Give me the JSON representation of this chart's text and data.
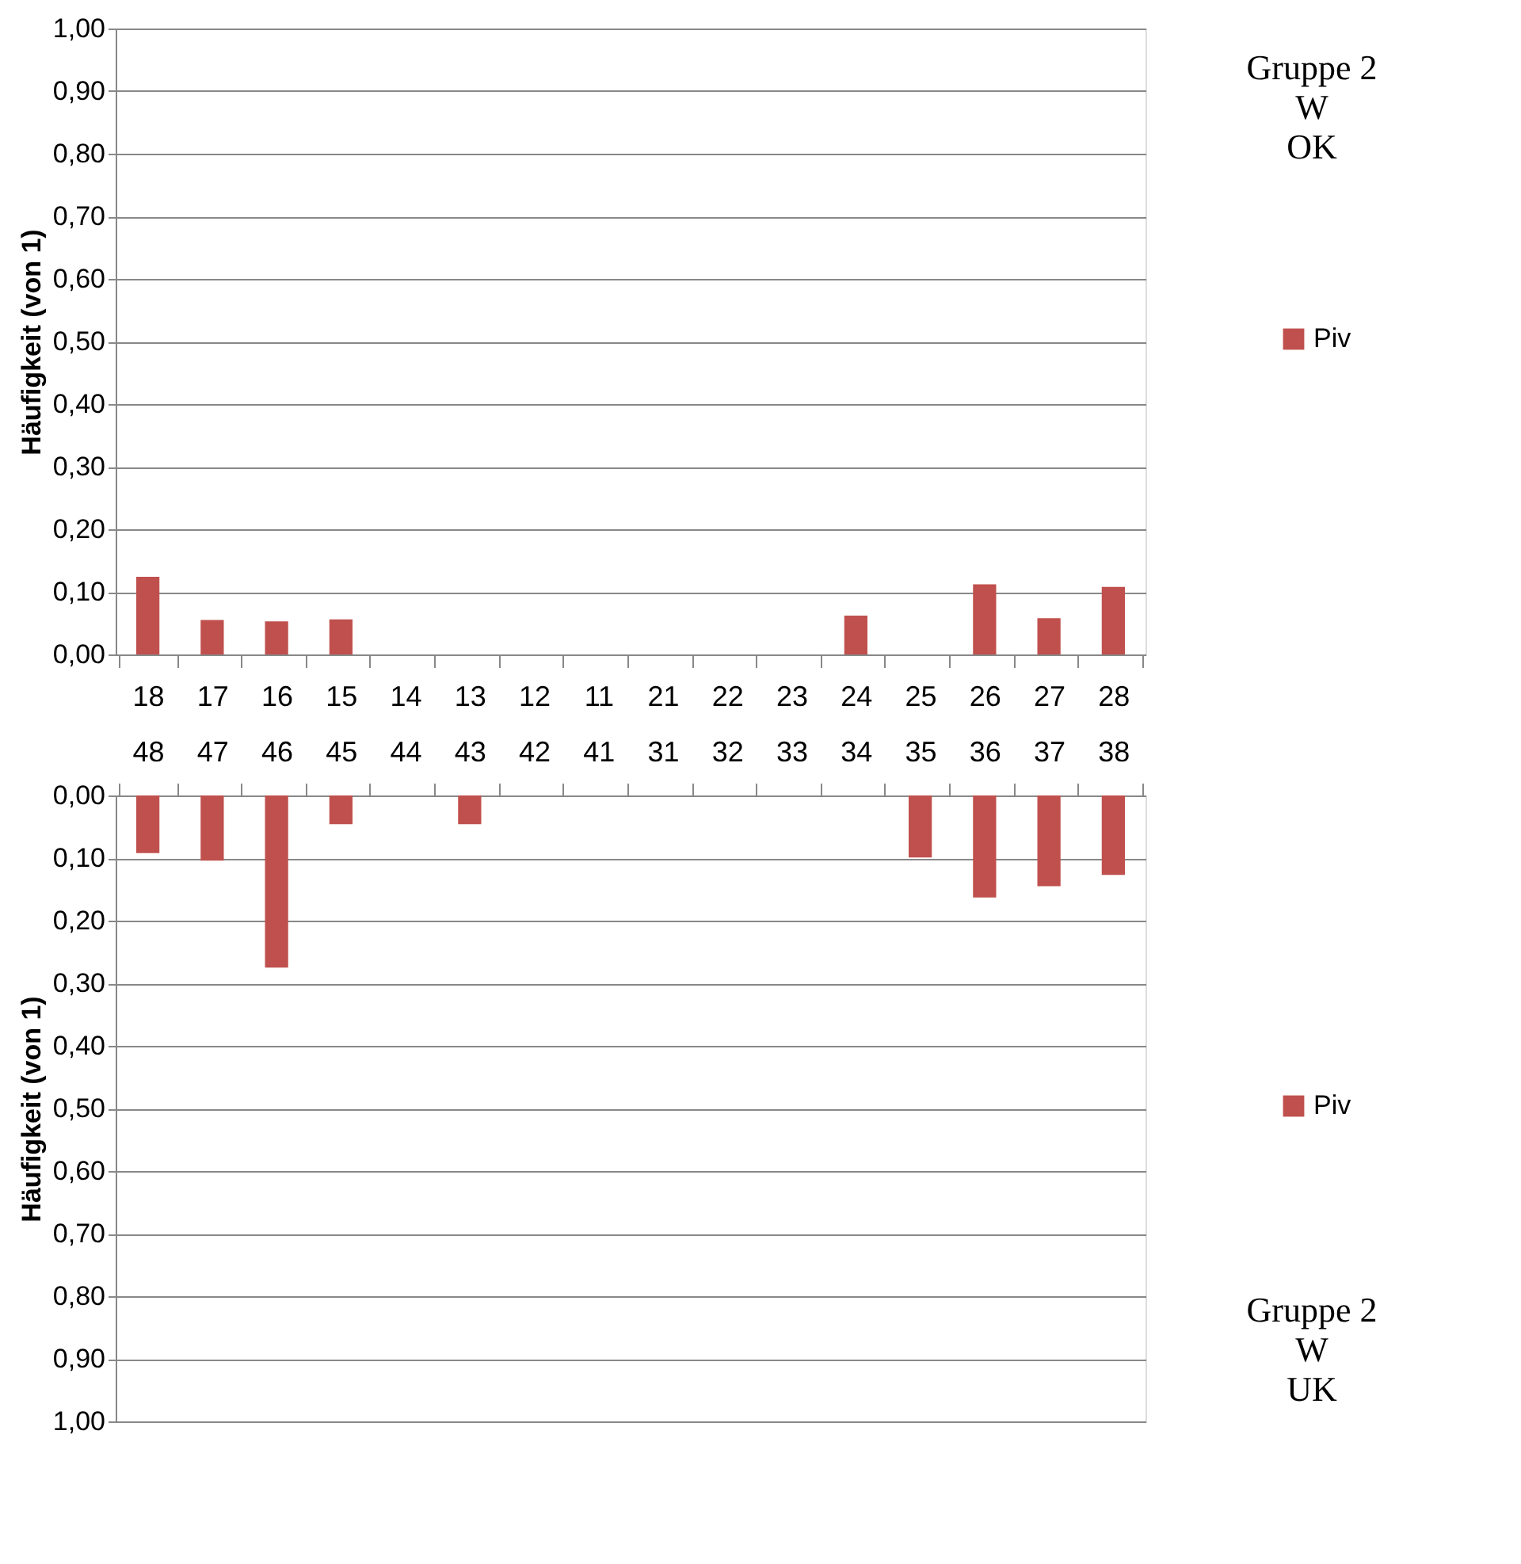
{
  "chart_data": [
    {
      "type": "bar",
      "ylabel": "Häufigkeit (von 1)",
      "categories": [
        "18",
        "17",
        "16",
        "15",
        "14",
        "13",
        "12",
        "11",
        "21",
        "22",
        "23",
        "24",
        "25",
        "26",
        "27",
        "28"
      ],
      "series": [
        {
          "name": "Piv",
          "color": "#c0504d",
          "values": [
            0.124,
            0.055,
            0.053,
            0.056,
            0,
            0,
            0,
            0,
            0,
            0,
            0,
            0.062,
            0,
            0.112,
            0.058,
            0.108
          ]
        }
      ],
      "ylim": [
        0,
        1
      ],
      "yticks": [
        {
          "value": 0,
          "label": "0,00"
        },
        {
          "value": 0.1,
          "label": "0,10"
        },
        {
          "value": 0.2,
          "label": "0,20"
        },
        {
          "value": 0.3,
          "label": "0,30"
        },
        {
          "value": 0.4,
          "label": "0,40"
        },
        {
          "value": 0.5,
          "label": "0,50"
        },
        {
          "value": 0.6,
          "label": "0,60"
        },
        {
          "value": 0.7,
          "label": "0,70"
        },
        {
          "value": 0.8,
          "label": "0,80"
        },
        {
          "value": 0.9,
          "label": "0,90"
        },
        {
          "value": 1,
          "label": "1,00"
        }
      ],
      "grid": "y",
      "legend": "right",
      "annotations": [
        "Gruppe 2",
        "W",
        "OK"
      ]
    },
    {
      "type": "bar",
      "ylabel": "Häufigkeit (von 1)",
      "categories": [
        "48",
        "47",
        "46",
        "45",
        "44",
        "43",
        "42",
        "41",
        "31",
        "32",
        "33",
        "34",
        "35",
        "36",
        "37",
        "38"
      ],
      "series": [
        {
          "name": "Piv",
          "color": "#c0504d",
          "values": [
            0.092,
            0.104,
            0.275,
            0.046,
            0,
            0.046,
            0,
            0,
            0,
            0,
            0,
            0,
            0.099,
            0.163,
            0.145,
            0.127
          ]
        }
      ],
      "ylim": [
        1,
        0
      ],
      "yticks": [
        {
          "value": 0,
          "label": "0,00"
        },
        {
          "value": 0.1,
          "label": "0,10"
        },
        {
          "value": 0.2,
          "label": "0,20"
        },
        {
          "value": 0.3,
          "label": "0,30"
        },
        {
          "value": 0.4,
          "label": "0,40"
        },
        {
          "value": 0.5,
          "label": "0,50"
        },
        {
          "value": 0.6,
          "label": "0,60"
        },
        {
          "value": 0.7,
          "label": "0,70"
        },
        {
          "value": 0.8,
          "label": "0,80"
        },
        {
          "value": 0.9,
          "label": "0,90"
        },
        {
          "value": 1,
          "label": "1,00"
        }
      ],
      "grid": "y",
      "legend": "right",
      "annotations": [
        "Gruppe 2",
        "W",
        "UK"
      ]
    }
  ]
}
